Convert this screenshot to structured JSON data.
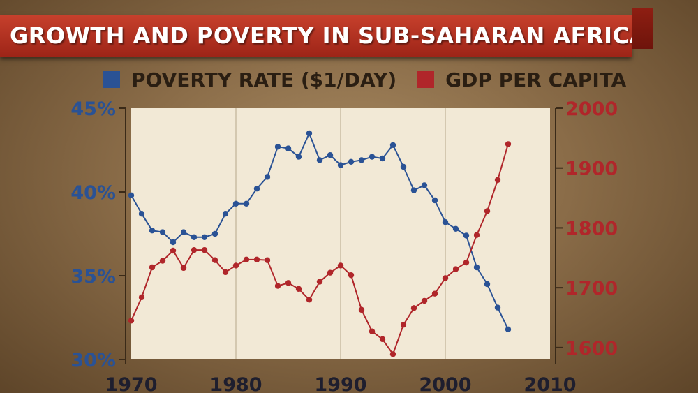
{
  "title": "GROWTH AND POVERTY IN SUB-SAHARAN AFRICA",
  "colors": {
    "poverty": "#2a5295",
    "gdp": "#b0262a",
    "banner": "#b5301f",
    "plot_bg": "#f2e9d6",
    "grid": "#c9bda3"
  },
  "chart_data": {
    "type": "line",
    "title": "GROWTH AND POVERTY IN SUB-SAHARAN AFRICA",
    "xlabel": "",
    "x_ticks": [
      "1970",
      "1980",
      "1990",
      "2000",
      "2010"
    ],
    "xlim": [
      1970,
      2010
    ],
    "y_left": {
      "label": "POVERTY RATE ($1/DAY)",
      "range": [
        30,
        45
      ],
      "ticks": [
        "30%",
        "35%",
        "40%",
        "45%"
      ]
    },
    "y_right": {
      "label": "GDP PER CAPITA",
      "range": [
        1580,
        2000
      ],
      "ticks": [
        "1600",
        "1700",
        "1800",
        "1900",
        "2000"
      ]
    },
    "grid": "vertical",
    "legend_position": "top",
    "x": [
      1970,
      1971,
      1972,
      1973,
      1974,
      1975,
      1976,
      1977,
      1978,
      1979,
      1980,
      1981,
      1982,
      1983,
      1984,
      1985,
      1986,
      1987,
      1988,
      1989,
      1990,
      1991,
      1992,
      1993,
      1994,
      1995,
      1996,
      1997,
      1998,
      1999,
      2000,
      2001,
      2002,
      2003,
      2004,
      2005,
      2006
    ],
    "series": [
      {
        "name": "POVERTY RATE ($1/DAY)",
        "axis": "left",
        "values": [
          39.8,
          38.7,
          37.7,
          37.6,
          37.0,
          37.6,
          37.3,
          37.3,
          37.5,
          38.7,
          39.3,
          39.3,
          40.2,
          40.9,
          42.7,
          42.6,
          42.1,
          43.5,
          41.9,
          42.2,
          41.6,
          41.8,
          41.9,
          42.1,
          42.0,
          42.8,
          41.5,
          40.1,
          40.4,
          39.5,
          38.2,
          37.8,
          37.4,
          35.5,
          34.5,
          33.1,
          31.8
        ]
      },
      {
        "name": "GDP PER CAPITA",
        "axis": "right",
        "values": [
          1645,
          1684,
          1734,
          1745,
          1762,
          1733,
          1763,
          1763,
          1746,
          1726,
          1737,
          1747,
          1747,
          1746,
          1703,
          1708,
          1698,
          1680,
          1710,
          1725,
          1737,
          1721,
          1663,
          1627,
          1614,
          1589,
          1638,
          1666,
          1678,
          1690,
          1716,
          1731,
          1742,
          1788,
          1828,
          1880,
          1940
        ]
      }
    ]
  }
}
